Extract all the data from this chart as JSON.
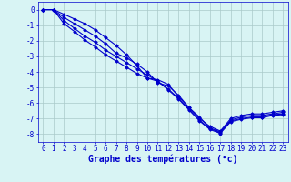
{
  "xlabel": "Graphe des températures (°c)",
  "background_color": "#d8f4f4",
  "grid_color": "#aacaca",
  "line_color": "#0000cc",
  "x": [
    0,
    1,
    2,
    3,
    4,
    5,
    6,
    7,
    8,
    9,
    10,
    11,
    12,
    13,
    14,
    15,
    16,
    17,
    18,
    19,
    20,
    21,
    22,
    23
  ],
  "line1": [
    0.0,
    0.0,
    -0.3,
    -0.6,
    -0.9,
    -1.3,
    -1.8,
    -2.3,
    -2.9,
    -3.6,
    -4.4,
    -4.5,
    -4.8,
    -5.6,
    -6.3,
    -7.0,
    -7.5,
    -7.8,
    -7.0,
    -6.8,
    -6.7,
    -6.7,
    -6.6,
    -6.5
  ],
  "line2": [
    0.0,
    0.0,
    -0.5,
    -0.9,
    -1.3,
    -1.7,
    -2.2,
    -2.8,
    -3.1,
    -3.5,
    -4.0,
    -4.7,
    -4.9,
    -5.5,
    -6.3,
    -6.9,
    -7.6,
    -7.85,
    -7.1,
    -6.9,
    -6.8,
    -6.8,
    -6.7,
    -6.6
  ],
  "line3": [
    0.0,
    0.0,
    -0.7,
    -1.2,
    -1.7,
    -2.1,
    -2.6,
    -3.0,
    -3.4,
    -3.8,
    -4.2,
    -4.6,
    -5.1,
    -5.7,
    -6.4,
    -7.1,
    -7.65,
    -7.9,
    -7.15,
    -7.0,
    -6.9,
    -6.9,
    -6.75,
    -6.7
  ],
  "line4": [
    0.0,
    0.0,
    -0.9,
    -1.4,
    -1.95,
    -2.4,
    -2.9,
    -3.3,
    -3.7,
    -4.1,
    -4.4,
    -4.6,
    -5.15,
    -5.75,
    -6.45,
    -7.15,
    -7.7,
    -7.95,
    -7.2,
    -7.05,
    -6.95,
    -6.95,
    -6.8,
    -6.75
  ],
  "ylim": [
    -8.5,
    0.5
  ],
  "xlim": [
    -0.5,
    23.5
  ],
  "yticks": [
    0,
    -1,
    -2,
    -3,
    -4,
    -5,
    -6,
    -7,
    -8
  ],
  "xticks": [
    0,
    1,
    2,
    3,
    4,
    5,
    6,
    7,
    8,
    9,
    10,
    11,
    12,
    13,
    14,
    15,
    16,
    17,
    18,
    19,
    20,
    21,
    22,
    23
  ],
  "marker": "D",
  "markersize": 1.8,
  "linewidth": 0.8,
  "tick_fontsize": 5.5,
  "xlabel_fontsize": 7.0
}
